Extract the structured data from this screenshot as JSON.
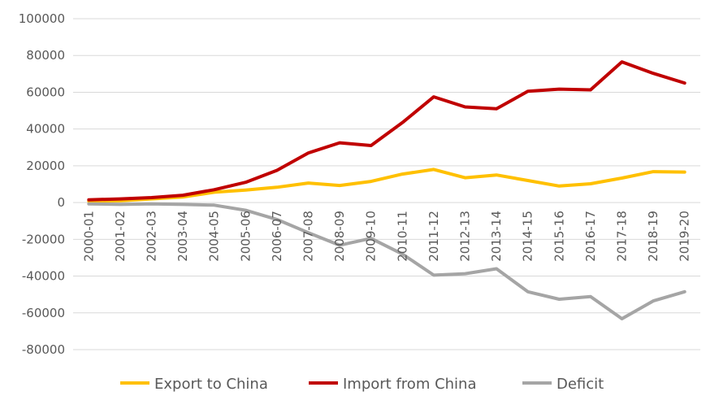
{
  "chart_data": {
    "type": "line",
    "title": "",
    "xlabel": "",
    "ylabel": "",
    "ylim": [
      -80000,
      100000
    ],
    "yticks": [
      100000,
      80000,
      60000,
      40000,
      20000,
      0,
      -20000,
      -40000,
      -60000,
      -80000
    ],
    "grid": "horizontal",
    "legend_position": "bottom",
    "categories": [
      "2000-01",
      "2001-02",
      "2002-03",
      "2003-04",
      "2004-05",
      "2005-06",
      "2006-07",
      "2007-08",
      "2008-09",
      "2009-10",
      "2010-11",
      "2011-12",
      "2012-13",
      "2013-14",
      "2014-15",
      "2015-16",
      "2016-17",
      "2017-18",
      "2018-19",
      "2019-20"
    ],
    "series": [
      {
        "name": "Export to China",
        "color": "#FFC000",
        "values": [
          800,
          1000,
          2000,
          3000,
          5600,
          6800,
          8300,
          10600,
          9300,
          11500,
          15500,
          18000,
          13500,
          15000,
          12000,
          9000,
          10200,
          13300,
          16800,
          16600
        ]
      },
      {
        "name": "Import from China",
        "color": "#C00000",
        "values": [
          1500,
          2000,
          2700,
          4000,
          7000,
          11000,
          17500,
          27000,
          32500,
          31000,
          43500,
          57500,
          52000,
          51000,
          60500,
          61700,
          61300,
          76500,
          70300,
          65000
        ]
      },
      {
        "name": "Deficit",
        "color": "#A5A5A5",
        "values": [
          -700,
          -1000,
          -700,
          -1000,
          -1400,
          -4200,
          -9200,
          -16400,
          -23200,
          -19500,
          -28000,
          -39500,
          -38700,
          -36000,
          -48500,
          -52600,
          -51100,
          -63200,
          -53500,
          -48500
        ]
      }
    ]
  }
}
